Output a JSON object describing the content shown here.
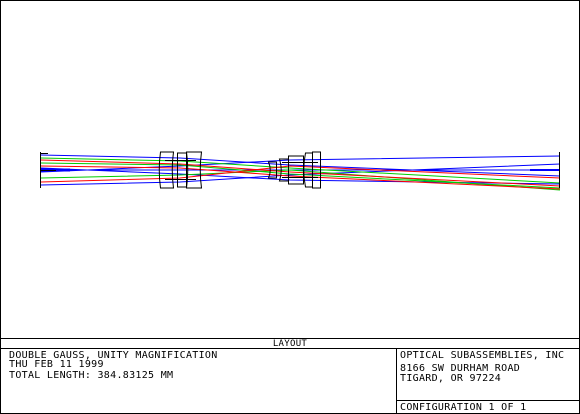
{
  "title_block": {
    "layout_label": "LAYOUT",
    "description_lines": [
      "DOUBLE GAUSS, UNITY MAGNIFICATION",
      "THU FEB 11 1999",
      "TOTAL LENGTH:   384.83125 MM"
    ],
    "company_lines": [
      "OPTICAL SUBASSEMBLIES, INC",
      "8166 SW DURHAM ROAD",
      "TIGARD,  OR  97224"
    ],
    "configuration": "CONFIGURATION 1 OF 1"
  },
  "colors": {
    "ray_field_1": "#0000ff",
    "ray_field_2": "#00cc00",
    "ray_field_3": "#ff0000",
    "lens_outline": "#000000"
  }
}
